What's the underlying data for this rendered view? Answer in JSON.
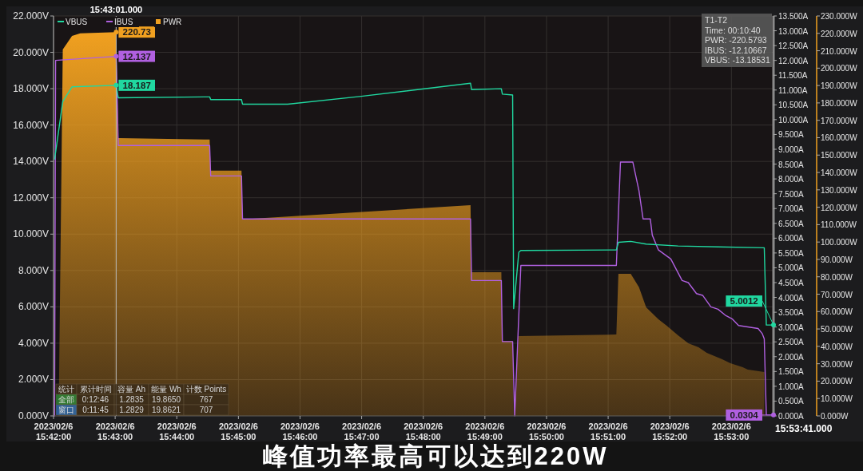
{
  "chart_data": {
    "type": "line",
    "title": "峰值功率最高可以达到220W",
    "annotations": [
      "T1-T2",
      "Time: 00:10:40",
      "PWR: -220.5793",
      "IBUS: -12.10667",
      "VBUS: -13.18531",
      "统计",
      "累计时间",
      "容量 Ah",
      "能量 Wh",
      "计数 Points",
      "全部",
      "0:12:46",
      "1.2835",
      "19.8650",
      "767",
      "窗口",
      "0:11:45",
      "1.2829",
      "19.8621",
      "707",
      "15:53:41.000"
    ],
    "xlim": [
      "2023-02-06T15:42:00",
      "2023-02-06T15:53:41"
    ],
    "xticks": [
      {
        "value": "2023-02-06T15:42",
        "label": "2023/02/6 15:42:00"
      },
      {
        "value": "2023-02-06T15:43",
        "label": "2023/02/6 15:43:00"
      },
      {
        "value": "2023-02-06T15:44",
        "label": "2023/02/6 15:44:00"
      },
      {
        "value": "2023-02-06T15:45",
        "label": "2023/02/6 15:45:00"
      },
      {
        "value": "2023-02-06T15:46",
        "label": "2023/02/6 15:46:00"
      },
      {
        "value": "2023-02-06T15:47",
        "label": "2023/02/6 15:47:00"
      },
      {
        "value": "2023-02-06T15:48",
        "label": "2023/02/6 15:48:00"
      },
      {
        "value": "2023-02-06T15:49",
        "label": "2023/02/6 15:49:00"
      },
      {
        "value": "2023-02-06T15:50",
        "label": "2023/02/6 15:50:00"
      },
      {
        "value": "2023-02-06T15:51",
        "label": "2023/02/6 15:51:00"
      },
      {
        "value": "2023-02-06T15:52",
        "label": "2023/02/6 15:52:00"
      },
      {
        "value": "2023-02-06T15:53",
        "label": "2023/02/6 15:53:00"
      }
    ],
    "ylim": [
      0,
      22
    ],
    "yticks": [
      {
        "value": 0,
        "label": "0.000V"
      },
      {
        "value": 2,
        "label": "2.000V"
      },
      {
        "value": 4,
        "label": "4.000V"
      },
      {
        "value": 6,
        "label": "6.000V"
      },
      {
        "value": 8,
        "label": "8.000V"
      },
      {
        "value": 10,
        "label": "10.000V"
      },
      {
        "value": 12,
        "label": "12.000V"
      },
      {
        "value": 14,
        "label": "14.000V"
      },
      {
        "value": 16,
        "label": "16.000V"
      },
      {
        "value": 18,
        "label": "18.000V"
      },
      {
        "value": 20,
        "label": "20.000V"
      },
      {
        "value": 22,
        "label": "22.000V"
      }
    ],
    "y2lim": [
      0,
      13.5
    ],
    "y2ticks": [
      {
        "value": 0,
        "label": "0.000A"
      },
      {
        "value": 0.5,
        "label": "0.500A"
      },
      {
        "value": 1,
        "label": "1.000A"
      },
      {
        "value": 1.5,
        "label": "1.500A"
      },
      {
        "value": 2,
        "label": "2.000A"
      },
      {
        "value": 2.5,
        "label": "2.500A"
      },
      {
        "value": 3,
        "label": "3.000A"
      },
      {
        "value": 3.5,
        "label": "3.500A"
      },
      {
        "value": 4,
        "label": "4.000A"
      },
      {
        "value": 4.5,
        "label": "4.500A"
      },
      {
        "value": 5,
        "label": "5.000A"
      },
      {
        "value": 5.5,
        "label": "5.500A"
      },
      {
        "value": 6,
        "label": "6.000A"
      },
      {
        "value": 6.5,
        "label": "6.500A"
      },
      {
        "value": 7,
        "label": "7.000A"
      },
      {
        "value": 7.5,
        "label": "7.500A"
      },
      {
        "value": 8,
        "label": "8.000A"
      },
      {
        "value": 8.5,
        "label": "8.500A"
      },
      {
        "value": 9,
        "label": "9.000A"
      },
      {
        "value": 9.5,
        "label": "9.500A"
      },
      {
        "value": 10,
        "label": "10.000A"
      },
      {
        "value": 10.5,
        "label": "10.500A"
      },
      {
        "value": 11,
        "label": "11.000A"
      },
      {
        "value": 11.5,
        "label": "11.500A"
      },
      {
        "value": 12,
        "label": "12.000A"
      },
      {
        "value": 12.5,
        "label": "12.500A"
      },
      {
        "value": 13,
        "label": "13.000A"
      },
      {
        "value": 13.5,
        "label": "13.500A"
      }
    ],
    "y3lim": [
      0,
      230
    ],
    "y3ticks": [
      {
        "value": 0,
        "label": "0.000W"
      },
      {
        "value": 10,
        "label": "10.000W"
      },
      {
        "value": 20,
        "label": "20.000W"
      },
      {
        "value": 30,
        "label": "30.000W"
      },
      {
        "value": 40,
        "label": "40.000W"
      },
      {
        "value": 50,
        "label": "50.000W"
      },
      {
        "value": 60,
        "label": "60.000W"
      },
      {
        "value": 70,
        "label": "70.000W"
      },
      {
        "value": 80,
        "label": "80.000W"
      },
      {
        "value": 90,
        "label": "90.000W"
      },
      {
        "value": 100,
        "label": "100.000W"
      },
      {
        "value": 110,
        "label": "110.000W"
      },
      {
        "value": 120,
        "label": "120.000W"
      },
      {
        "value": 130,
        "label": "130.000W"
      },
      {
        "value": 140,
        "label": "140.000W"
      },
      {
        "value": 150,
        "label": "150.000W"
      },
      {
        "value": 160,
        "label": "160.000W"
      },
      {
        "value": 170,
        "label": "170.000W"
      },
      {
        "value": 180,
        "label": "180.000W"
      },
      {
        "value": 190,
        "label": "190.000W"
      },
      {
        "value": 200,
        "label": "200.000W"
      },
      {
        "value": 210,
        "label": "210.000W"
      },
      {
        "value": 220,
        "label": "220.000W"
      },
      {
        "value": 230,
        "label": "230.000W"
      }
    ],
    "series": [
      {
        "name": "PWR",
        "type": "area",
        "axis": "y3",
        "color": "#f0a020",
        "x": [
          "2023-02-06T15:42:00",
          "2023-02-06T15:42:05",
          "2023-02-06T15:42:09",
          "2023-02-06T15:42:18",
          "2023-02-06T15:42:26",
          "2023-02-06T15:43:01",
          "2023-02-06T15:43:03",
          "2023-02-06T15:44:32",
          "2023-02-06T15:44:33",
          "2023-02-06T15:45:03",
          "2023-02-06T15:45:04",
          "2023-02-06T15:48:46",
          "2023-02-06T15:48:47",
          "2023-02-06T15:49:16",
          "2023-02-06T15:49:17",
          "2023-02-06T15:49:27",
          "2023-02-06T15:49:28",
          "2023-02-06T15:49:33",
          "2023-02-06T15:51:08",
          "2023-02-06T15:51:10",
          "2023-02-06T15:51:22",
          "2023-02-06T15:51:30",
          "2023-02-06T15:51:37",
          "2023-02-06T15:51:49",
          "2023-02-06T15:51:57",
          "2023-02-06T15:52:08",
          "2023-02-06T15:52:18",
          "2023-02-06T15:52:28",
          "2023-02-06T15:52:36",
          "2023-02-06T15:52:43",
          "2023-02-06T15:52:51",
          "2023-02-06T15:52:59",
          "2023-02-06T15:53:11",
          "2023-02-06T15:53:16",
          "2023-02-06T15:53:32"
        ],
        "values": [
          0,
          0,
          210.7,
          218.5,
          220,
          220.73,
          159.8,
          158.9,
          141,
          141,
          113,
          121.2,
          82.6,
          82.6,
          43.2,
          43.2,
          0,
          45.9,
          46.8,
          81.7,
          81.7,
          74,
          62.4,
          55.5,
          51.9,
          46.4,
          41.8,
          39.5,
          36.3,
          34.5,
          32.6,
          30.3,
          28,
          26.6,
          25.3
        ],
        "value_labels": [
          null,
          null,
          null,
          null,
          null,
          "220.73",
          null,
          null,
          null,
          null,
          null,
          null,
          null,
          null,
          null,
          null,
          null,
          null,
          null,
          null,
          null,
          null,
          null,
          null,
          null,
          null,
          null,
          null,
          null,
          null,
          null,
          null,
          null,
          null,
          null
        ]
      },
      {
        "name": "IBUS",
        "axis": "y2",
        "color": "#b060e0",
        "x": [
          "2023-02-06T15:42:00",
          "2023-02-06T15:42:01",
          "2023-02-06T15:42:02",
          "2023-02-06T15:43:01",
          "2023-02-06T15:43:03",
          "2023-02-06T15:44:32",
          "2023-02-06T15:44:33",
          "2023-02-06T15:45:03",
          "2023-02-06T15:45:04",
          "2023-02-06T15:48:46",
          "2023-02-06T15:48:47",
          "2023-02-06T15:49:16",
          "2023-02-06T15:49:17",
          "2023-02-06T15:49:27",
          "2023-02-06T15:49:29",
          "2023-02-06T15:49:35",
          "2023-02-06T15:51:08",
          "2023-02-06T15:51:12",
          "2023-02-06T15:51:24",
          "2023-02-06T15:51:30",
          "2023-02-06T15:51:34",
          "2023-02-06T15:51:41",
          "2023-02-06T15:51:43",
          "2023-02-06T15:51:49",
          "2023-02-06T15:52:01",
          "2023-02-06T15:52:12",
          "2023-02-06T15:52:18",
          "2023-02-06T15:52:26",
          "2023-02-06T15:52:32",
          "2023-02-06T15:52:40",
          "2023-02-06T15:52:47",
          "2023-02-06T15:52:54",
          "2023-02-06T15:53:01",
          "2023-02-06T15:53:07",
          "2023-02-06T15:53:26",
          "2023-02-06T15:53:30",
          "2023-02-06T15:53:32",
          "2023-02-06T15:53:34",
          "2023-02-06T15:53:41"
        ],
        "values": [
          0,
          0,
          12.0,
          12.137,
          9.13,
          9.13,
          8.1,
          8.1,
          6.65,
          6.65,
          4.57,
          4.57,
          2.51,
          2.51,
          0,
          5.08,
          5.08,
          8.57,
          8.57,
          7.6,
          6.65,
          6.65,
          6.1,
          5.6,
          5.3,
          4.57,
          4.5,
          4.13,
          4.07,
          3.68,
          3.6,
          3.4,
          3.27,
          3.05,
          2.95,
          2.78,
          2.6,
          0.0304,
          0.0304
        ],
        "value_labels": [
          null,
          null,
          null,
          "12.137",
          null,
          null,
          null,
          null,
          null,
          null,
          null,
          null,
          null,
          null,
          null,
          null,
          null,
          null,
          null,
          null,
          null,
          null,
          null,
          null,
          null,
          null,
          null,
          null,
          null,
          null,
          null,
          null,
          null,
          null,
          null,
          null,
          null,
          null,
          "0.0304"
        ]
      },
      {
        "name": "VBUS",
        "axis": "y",
        "color": "#20d8a0",
        "x": [
          "2023-02-06T15:42:01",
          "2023-02-06T15:42:09",
          "2023-02-06T15:42:18",
          "2023-02-06T15:43:01",
          "2023-02-06T15:43:03",
          "2023-02-06T15:44:32",
          "2023-02-06T15:44:33",
          "2023-02-06T15:45:03",
          "2023-02-06T15:45:04",
          "2023-02-06T15:45:48",
          "2023-02-06T15:46:58",
          "2023-02-06T15:48:46",
          "2023-02-06T15:48:47",
          "2023-02-06T15:49:16",
          "2023-02-06T15:49:17",
          "2023-02-06T15:49:27",
          "2023-02-06T15:49:28",
          "2023-02-06T15:49:33",
          "2023-02-06T15:49:35",
          "2023-02-06T15:51:08",
          "2023-02-06T15:51:10",
          "2023-02-06T15:51:22",
          "2023-02-06T15:51:37",
          "2023-02-06T15:52:08",
          "2023-02-06T15:52:47",
          "2023-02-06T15:53:32",
          "2023-02-06T15:53:34",
          "2023-02-06T15:53:41"
        ],
        "values": [
          14.1,
          17.3,
          18.1,
          18.187,
          17.5,
          17.55,
          17.4,
          17.4,
          17.15,
          17.15,
          17.57,
          18.3,
          17.95,
          18.0,
          17.7,
          17.65,
          5.9,
          9.0,
          9.1,
          9.13,
          9.55,
          9.6,
          9.45,
          9.35,
          9.3,
          9.25,
          5.0,
          5.0012
        ],
        "value_labels": [
          null,
          null,
          null,
          "18.187",
          null,
          null,
          null,
          null,
          null,
          null,
          null,
          null,
          null,
          null,
          null,
          null,
          null,
          null,
          null,
          null,
          null,
          null,
          null,
          null,
          null,
          null,
          null,
          "5.0012"
        ]
      }
    ],
    "ref_lines": [
      {
        "axis": "x",
        "value": "2023-02-06T15:43:01",
        "label": "15:43:01.000",
        "color": "#b8b8b8"
      }
    ],
    "grid": true,
    "legend": "top left"
  }
}
